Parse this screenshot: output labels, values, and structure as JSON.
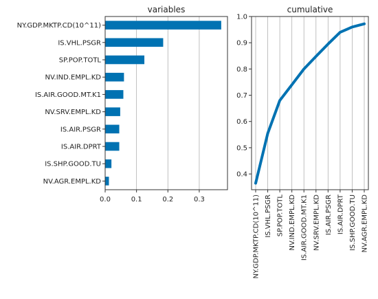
{
  "chart_data": [
    {
      "type": "bar",
      "orientation": "horizontal",
      "title": "variables",
      "categories": [
        "NY.GDP.MKTP.CD(10^11)",
        "IS.VHL.PSGR",
        "SP.POP.TOTL",
        "NV.IND.EMPL.KD",
        "IS.AIR.GOOD.MT.K1",
        "NV.SRV.EMPL.KD",
        "IS.AIR.PSGR",
        "IS.AIR.DPRT",
        "IS.SHP.GOOD.TU",
        "NV.AGR.EMPL.KD"
      ],
      "values": [
        0.37,
        0.185,
        0.125,
        0.06,
        0.058,
        0.048,
        0.045,
        0.045,
        0.02,
        0.012
      ],
      "xlim": [
        0,
        0.39
      ],
      "xticks": [
        "0.0",
        "0.1",
        "0.2",
        "0.3"
      ],
      "xtick_values": [
        0,
        0.1,
        0.2,
        0.3
      ],
      "grid": "x",
      "color": "#0072b2"
    },
    {
      "type": "line",
      "title": "cumulative",
      "categories": [
        "NY.GDP.MKTP.CD(10^11)",
        "IS.VHL.PSGR",
        "SP.POP.TOTL",
        "NV.IND.EMPL.KD",
        "IS.AIR.GOOD.MT.K1",
        "NV.SRV.EMPL.KD",
        "IS.AIR.PSGR",
        "IS.AIR.DPRT",
        "IS.SHP.GOOD.TU",
        "NV.AGR.EMPL.KD"
      ],
      "values": [
        0.365,
        0.555,
        0.68,
        0.74,
        0.8,
        0.848,
        0.895,
        0.94,
        0.96,
        0.972
      ],
      "ylim": [
        0.34,
        1.0
      ],
      "yticks": [
        "0.4",
        "0.5",
        "0.6",
        "0.7",
        "0.8",
        "0.9",
        "1.0"
      ],
      "ytick_values": [
        0.4,
        0.5,
        0.6,
        0.7,
        0.8,
        0.9,
        1.0
      ],
      "grid": "x",
      "color": "#0072b2"
    }
  ]
}
